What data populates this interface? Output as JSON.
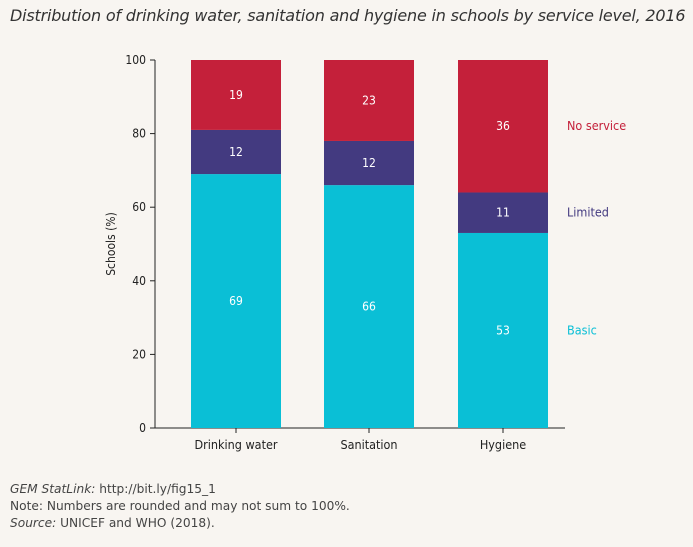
{
  "title": "Distribution of drinking water, sanitation and hygiene in schools by service level, 2016",
  "chart_data": {
    "type": "bar",
    "stacked": true,
    "categories": [
      "Drinking water",
      "Sanitation",
      "Hygiene"
    ],
    "series": [
      {
        "name": "Basic",
        "values": [
          69,
          66,
          53
        ],
        "color": "#0abfd6"
      },
      {
        "name": "Limited",
        "values": [
          12,
          12,
          11
        ],
        "color": "#433a80"
      },
      {
        "name": "No service",
        "values": [
          19,
          23,
          36
        ],
        "color": "#c4203a"
      }
    ],
    "ylabel": "Schools (%)",
    "xlabel": "",
    "ylim": [
      0,
      100
    ],
    "yticks": [
      0,
      20,
      40,
      60,
      80,
      100
    ],
    "grid": false,
    "legend": "right"
  },
  "footer": {
    "statlink_label": "GEM StatLink:",
    "statlink_url": "http://bit.ly/fig15_1",
    "note": "Note: Numbers are rounded and may not sum to 100%.",
    "source_label": "Source:",
    "source_text": "UNICEF and WHO (2018)."
  }
}
